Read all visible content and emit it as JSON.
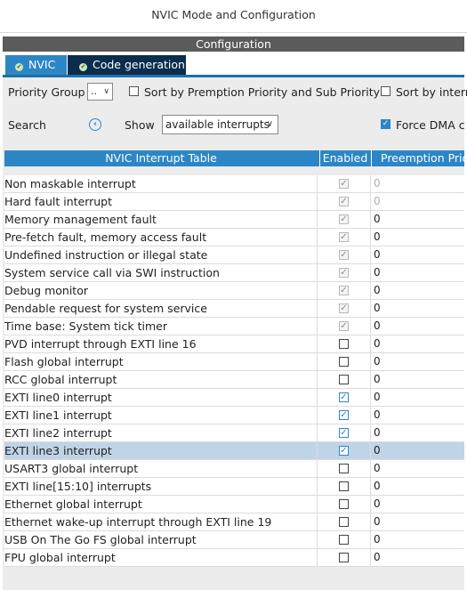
{
  "window": {
    "title": "NVIC Mode and Configuration"
  },
  "section": {
    "title": "Configuration"
  },
  "tabs": [
    {
      "label": "NVIC",
      "icon": "check-circle-icon",
      "active": true
    },
    {
      "label": "Code generation",
      "icon": "check-circle-icon",
      "active": false
    }
  ],
  "toolbar": {
    "priority_group_label": "Priority Group",
    "priority_group_value": "..",
    "sort_premption_label": "Sort by Premption Priority and Sub Priority",
    "sort_interrupts_label": "Sort by interr",
    "search_label": "Search",
    "show_label": "Show",
    "show_value": "available interrupts",
    "force_dma_label": "Force DMA c"
  },
  "table": {
    "headers": {
      "name": "NVIC Interrupt Table",
      "enabled": "Enabled",
      "preemption": "Preemption Prio"
    },
    "rows": [
      {
        "name": "Non maskable interrupt",
        "enabled": "locked",
        "preemption": "0",
        "dim": true
      },
      {
        "name": "Hard fault interrupt",
        "enabled": "locked",
        "preemption": "0",
        "dim": true
      },
      {
        "name": "Memory management fault",
        "enabled": "locked",
        "preemption": "0"
      },
      {
        "name": "Pre-fetch fault, memory access fault",
        "enabled": "locked",
        "preemption": "0"
      },
      {
        "name": "Undefined instruction or illegal state",
        "enabled": "locked",
        "preemption": "0"
      },
      {
        "name": "System service call via SWI instruction",
        "enabled": "locked",
        "preemption": "0"
      },
      {
        "name": "Debug monitor",
        "enabled": "locked",
        "preemption": "0"
      },
      {
        "name": "Pendable request for system service",
        "enabled": "locked",
        "preemption": "0"
      },
      {
        "name": "Time base: System tick timer",
        "enabled": "locked",
        "preemption": "0"
      },
      {
        "name": "PVD interrupt through EXTI line 16",
        "enabled": "unchecked",
        "preemption": "0"
      },
      {
        "name": "Flash global interrupt",
        "enabled": "unchecked",
        "preemption": "0"
      },
      {
        "name": "RCC global interrupt",
        "enabled": "unchecked",
        "preemption": "0"
      },
      {
        "name": "EXTI line0 interrupt",
        "enabled": "checked",
        "preemption": "0"
      },
      {
        "name": "EXTI line1 interrupt",
        "enabled": "checked",
        "preemption": "0"
      },
      {
        "name": "EXTI line2 interrupt",
        "enabled": "checked",
        "preemption": "0"
      },
      {
        "name": "EXTI line3 interrupt",
        "enabled": "checked",
        "preemption": "0",
        "selected": true
      },
      {
        "name": "USART3 global interrupt",
        "enabled": "unchecked",
        "preemption": "0"
      },
      {
        "name": "EXTI line[15:10] interrupts",
        "enabled": "unchecked",
        "preemption": "0"
      },
      {
        "name": "Ethernet global interrupt",
        "enabled": "unchecked",
        "preemption": "0"
      },
      {
        "name": "Ethernet wake-up interrupt through EXTI line 19",
        "enabled": "unchecked",
        "preemption": "0"
      },
      {
        "name": "USB On The Go FS global interrupt",
        "enabled": "unchecked",
        "preemption": "0"
      },
      {
        "name": "FPU global interrupt",
        "enabled": "unchecked",
        "preemption": "0"
      }
    ]
  }
}
